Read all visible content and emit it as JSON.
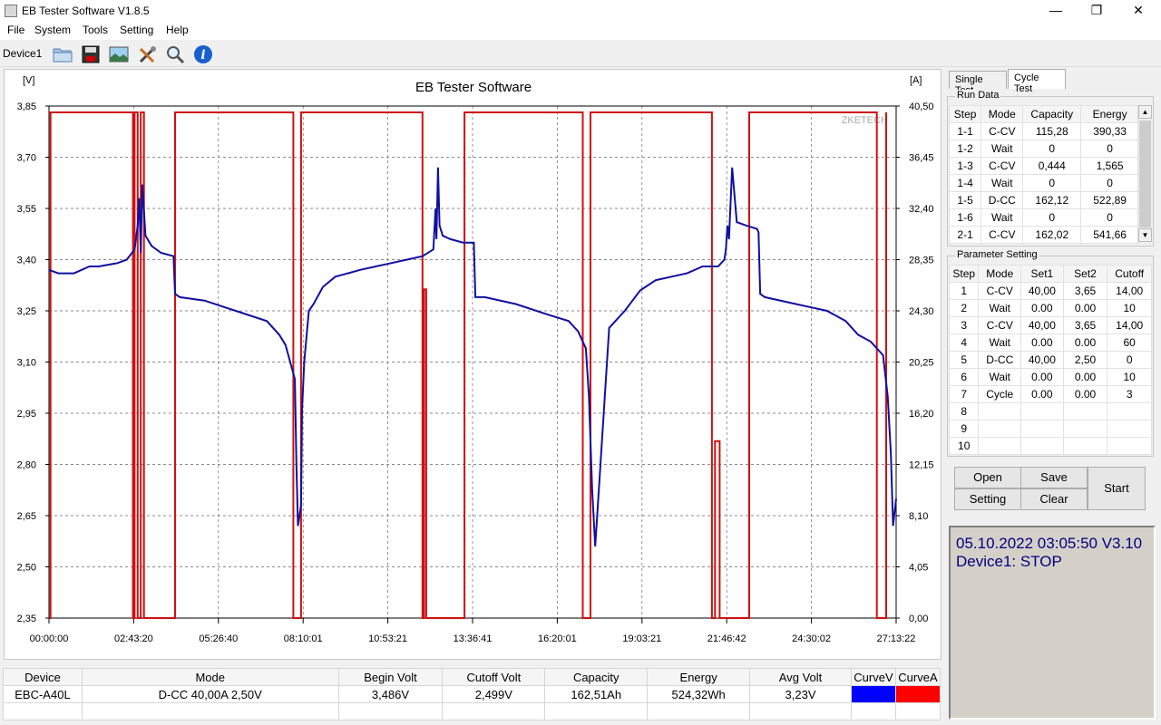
{
  "window": {
    "title": "EB Tester Software V1.8.5",
    "minimize": "—",
    "maximize": "❐",
    "close": "✕"
  },
  "menu": [
    "File",
    "System",
    "Tools",
    "Setting",
    "Help"
  ],
  "toolbar": {
    "device": "Device1",
    "tools": [
      "folder-icon",
      "save-icon",
      "image-icon",
      "tools-icon",
      "magnifier-icon",
      "info-icon"
    ]
  },
  "colors": {
    "curve_v": "#1010a0",
    "curve_a": "#d01010",
    "legend_v": "#0000ff",
    "legend_a": "#ff0000"
  },
  "chart_data": {
    "type": "line",
    "title": "EB Tester Software",
    "watermark": "ZKETECH",
    "y_left_unit": "[V]",
    "y_right_unit": "[A]",
    "y_left_ticks": [
      "3,85",
      "3,70",
      "3,55",
      "3,40",
      "3,25",
      "3,10",
      "2,95",
      "2,80",
      "2,65",
      "2,50",
      "2,35"
    ],
    "y_right_ticks": [
      "40,50",
      "36,45",
      "32,40",
      "28,35",
      "24,30",
      "20,25",
      "16,20",
      "12,15",
      "8,10",
      "4,05",
      "0,00"
    ],
    "x_ticks": [
      "00:00:00",
      "02:43:20",
      "05:26:40",
      "08:10:01",
      "10:53:21",
      "13:36:41",
      "16:20:01",
      "19:03:21",
      "21:46:42",
      "24:30:02",
      "27:13:22"
    ],
    "ylim_left": [
      2.35,
      3.85
    ],
    "ylim_right": [
      0,
      40.5
    ],
    "xlim_hours": [
      0,
      27.22
    ],
    "grid": true,
    "series": [
      {
        "name": "CurveV",
        "x": [
          0,
          0.3,
          0.8,
          1.3,
          1.6,
          2.2,
          2.5,
          2.75,
          2.85,
          2.9,
          2.95,
          3.0,
          3.1,
          3.3,
          3.6,
          4.0,
          4.05,
          4.2,
          5.0,
          6.0,
          7.0,
          7.4,
          7.6,
          7.9,
          7.95,
          8.0,
          8.1,
          8.13,
          8.2,
          8.35,
          8.5,
          8.8,
          9.2,
          9.6,
          10.0,
          10.5,
          11.0,
          11.5,
          12.0,
          12.35,
          12.42,
          12.45,
          12.5,
          12.55,
          12.65,
          12.9,
          13.3,
          13.65,
          13.7,
          14.0,
          15.0,
          16.0,
          16.7,
          17.0,
          17.25,
          17.35,
          17.45,
          17.55,
          17.7,
          18.0,
          18.5,
          19.0,
          19.5,
          20.0,
          20.5,
          21.0,
          21.5,
          21.7,
          21.75,
          21.8,
          21.85,
          21.95,
          22.1,
          22.4,
          22.75,
          22.8,
          22.85,
          23.0,
          24.0,
          25.0,
          25.6,
          26.0,
          26.4,
          26.8,
          26.95,
          27.05,
          27.12,
          27.22
        ],
        "y": [
          3.37,
          3.36,
          3.36,
          3.38,
          3.38,
          3.39,
          3.4,
          3.43,
          3.5,
          3.58,
          3.42,
          3.62,
          3.47,
          3.44,
          3.42,
          3.41,
          3.3,
          3.29,
          3.28,
          3.25,
          3.22,
          3.18,
          3.15,
          3.05,
          2.8,
          2.62,
          2.68,
          2.96,
          3.1,
          3.25,
          3.27,
          3.32,
          3.35,
          3.36,
          3.37,
          3.38,
          3.39,
          3.4,
          3.41,
          3.43,
          3.55,
          3.46,
          3.67,
          3.5,
          3.47,
          3.46,
          3.45,
          3.45,
          3.29,
          3.29,
          3.27,
          3.24,
          3.22,
          3.19,
          3.14,
          3.0,
          2.73,
          2.56,
          2.77,
          3.2,
          3.25,
          3.31,
          3.34,
          3.35,
          3.36,
          3.38,
          3.38,
          3.4,
          3.43,
          3.5,
          3.46,
          3.67,
          3.51,
          3.5,
          3.49,
          3.48,
          3.3,
          3.29,
          3.27,
          3.25,
          3.22,
          3.18,
          3.16,
          3.12,
          3.0,
          2.83,
          2.62,
          2.7
        ]
      },
      {
        "name": "CurveA",
        "x": [
          0,
          0.05,
          0.05,
          2.7,
          2.7,
          2.75,
          2.75,
          2.85,
          2.85,
          2.95,
          2.95,
          3.05,
          3.05,
          4.05,
          4.05,
          7.85,
          7.85,
          8.1,
          8.1,
          12.0,
          12.0,
          12.05,
          12.05,
          12.12,
          12.12,
          12.15,
          12.15,
          13.35,
          13.35,
          17.15,
          17.15,
          17.4,
          17.4,
          21.3,
          21.3,
          21.4,
          21.4,
          21.55,
          21.55,
          21.6,
          21.6,
          22.5,
          22.5,
          26.6,
          26.6,
          26.9,
          26.9
        ],
        "y": [
          0,
          0,
          40,
          40,
          0,
          0,
          40,
          40,
          0,
          0,
          40,
          40,
          0,
          0,
          40,
          40,
          0,
          0,
          40,
          40,
          0,
          0,
          26,
          26,
          0,
          0,
          0,
          0,
          40,
          40,
          0,
          0,
          40,
          40,
          0,
          0,
          14,
          14,
          0,
          0,
          0,
          0,
          40,
          40,
          0,
          0,
          40
        ]
      }
    ]
  },
  "tabs": [
    "Single Test",
    "Cycle Test"
  ],
  "run_data": {
    "title": "Run Data",
    "headers": [
      "Step",
      "Mode",
      "Capacity",
      "Energy"
    ],
    "rows": [
      [
        "1-1",
        "C-CV",
        "115,28",
        "390,33"
      ],
      [
        "1-2",
        "Wait",
        "0",
        "0"
      ],
      [
        "1-3",
        "C-CV",
        "0,444",
        "1,565"
      ],
      [
        "1-4",
        "Wait",
        "0",
        "0"
      ],
      [
        "1-5",
        "D-CC",
        "162,12",
        "522,89"
      ],
      [
        "1-6",
        "Wait",
        "0",
        "0"
      ],
      [
        "2-1",
        "C-CV",
        "162,02",
        "541,66"
      ]
    ]
  },
  "param": {
    "title": "Parameter Setting",
    "headers": [
      "Step",
      "Mode",
      "Set1",
      "Set2",
      "Cutoff"
    ],
    "rows": [
      [
        "1",
        "C-CV",
        "40,00",
        "3,65",
        "14,00"
      ],
      [
        "2",
        "Wait",
        "0.00",
        "0.00",
        "10"
      ],
      [
        "3",
        "C-CV",
        "40,00",
        "3,65",
        "14,00"
      ],
      [
        "4",
        "Wait",
        "0.00",
        "0.00",
        "60"
      ],
      [
        "5",
        "D-CC",
        "40,00",
        "2,50",
        "0"
      ],
      [
        "6",
        "Wait",
        "0.00",
        "0.00",
        "10"
      ],
      [
        "7",
        "Cycle",
        "0.00",
        "0.00",
        "3"
      ],
      [
        "8",
        "",
        "",
        "",
        ""
      ],
      [
        "9",
        "",
        "",
        "",
        ""
      ],
      [
        "10",
        "",
        "",
        "",
        ""
      ]
    ]
  },
  "buttons": {
    "open": "Open",
    "save": "Save",
    "setting": "Setting",
    "clear": "Clear",
    "start": "Start"
  },
  "status": {
    "datetime": "05.10.2022 03:05:50  V3.10",
    "device": "Device1: STOP"
  },
  "summary": {
    "headers": [
      "Device",
      "Mode",
      "Begin Volt",
      "Cutoff Volt",
      "Capacity",
      "Energy",
      "Avg Volt",
      "CurveV",
      "CurveA"
    ],
    "row": [
      "EBC-A40L",
      "D-CC  40,00A  2,50V",
      "3,486V",
      "2,499V",
      "162,51Ah",
      "524,32Wh",
      "3,23V"
    ]
  }
}
